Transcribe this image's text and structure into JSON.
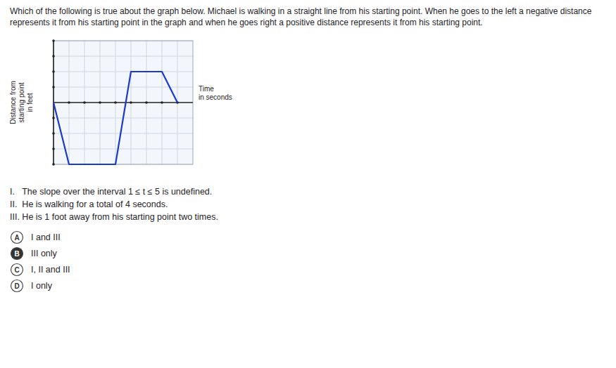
{
  "chart_data": {
    "type": "line",
    "title": "Which of the following is true about the graph below.  Michael is walking in a straight line from his starting point.  When he goes to the left a negative distance",
    "subtitle": "represents it from his starting point in the graph and when he goes right a positive distance represents it from his starting point.",
    "x": [
      0,
      1,
      4,
      5,
      7,
      8
    ],
    "values": [
      0,
      -4,
      -4,
      2,
      2,
      0
    ],
    "color": "#1a3acc",
    "xlim": [
      0,
      9
    ],
    "ylim": [
      -4,
      4
    ],
    "xticks": [
      1,
      2,
      3,
      4,
      5,
      6,
      7,
      8
    ],
    "yticks": [
      -4,
      -3,
      -2,
      -1,
      1,
      2,
      3,
      4
    ],
    "xlabel": "Time\nin seconds",
    "ylabel": "Distance from\nstarting point\nin feet",
    "grid": true,
    "tick_labels": false,
    "statements": [
      "I.   The slope over the interval 1 ≤ t ≤ 5 is undefined.",
      "II.  He is walking for a total of 4 seconds.",
      "III. He is 1 foot away from his starting point two times."
    ],
    "choices": [
      {
        "label": "A",
        "text": "I and III",
        "selected": false
      },
      {
        "label": "B",
        "text": "III only",
        "selected": true
      },
      {
        "label": "C",
        "text": "I, II and III",
        "selected": false
      },
      {
        "label": "D",
        "text": "I only",
        "selected": false
      }
    ]
  }
}
